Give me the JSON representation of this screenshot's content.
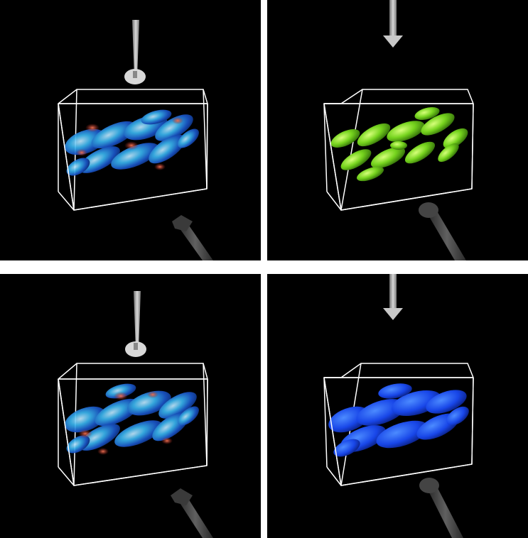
{
  "figure": {
    "panels": [
      {
        "id": "top-left",
        "view": "isosurface-multicolor",
        "wand": "disk-pointer",
        "palette": "blue-red"
      },
      {
        "id": "top-right",
        "view": "isosurface-green",
        "wand": "arrow-pointer",
        "palette": "green"
      },
      {
        "id": "bottom-left",
        "view": "isosurface-multicolor",
        "wand": "disk-pointer",
        "palette": "blue-red"
      },
      {
        "id": "bottom-right",
        "view": "isosurface-blue",
        "wand": "arrow-pointer",
        "palette": "blue"
      }
    ],
    "colors": {
      "background": "#000000",
      "separator": "#ffffff",
      "box_edge": "#ffffff",
      "green": "#7fe02a",
      "blue": "#1a5cff",
      "cyan": "#38c6f0",
      "red": "#d04030"
    }
  }
}
